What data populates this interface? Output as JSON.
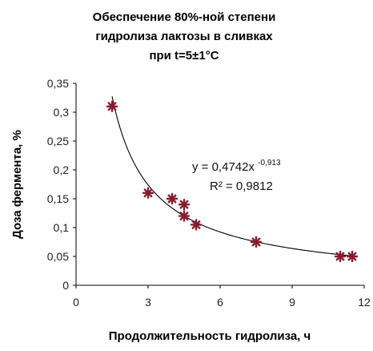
{
  "title_lines": [
    "Обеспечение 80%-ной степени",
    "гидролиза лактозы в сливках",
    "при t=5±1°C"
  ],
  "chart_data": {
    "type": "scatter",
    "title": "Обеспечение 80%-ной степени гидролиза лактозы в сливках при t=5±1°C",
    "xlabel": "Продолжительность  гидролиза, ч",
    "ylabel": "Доза фермента, %",
    "xlim": [
      0,
      12
    ],
    "ylim": [
      0,
      0.35
    ],
    "xticks": [
      0,
      3,
      6,
      9,
      12
    ],
    "yticks": [
      "0",
      "0,05",
      "0,1",
      "0,15",
      "0,2",
      "0,25",
      "0,3",
      "0,35"
    ],
    "ytick_values": [
      0,
      0.05,
      0.1,
      0.15,
      0.2,
      0.25,
      0.3,
      0.35
    ],
    "grid": false,
    "marker_color": "#8b1a2b",
    "trendline": {
      "type": "power",
      "a": 0.4742,
      "b": -0.913,
      "x_range": [
        1.5,
        11.5
      ],
      "equation_base": "y = 0,4742x",
      "equation_exp": "-0,913",
      "r2": "R² = 0,9812"
    },
    "points": [
      {
        "x": 1.5,
        "y": 0.31
      },
      {
        "x": 3.0,
        "y": 0.16
      },
      {
        "x": 4.0,
        "y": 0.15
      },
      {
        "x": 4.5,
        "y": 0.14
      },
      {
        "x": 4.5,
        "y": 0.12
      },
      {
        "x": 5.0,
        "y": 0.105
      },
      {
        "x": 7.5,
        "y": 0.075
      },
      {
        "x": 11.0,
        "y": 0.05
      },
      {
        "x": 11.5,
        "y": 0.05
      }
    ]
  }
}
